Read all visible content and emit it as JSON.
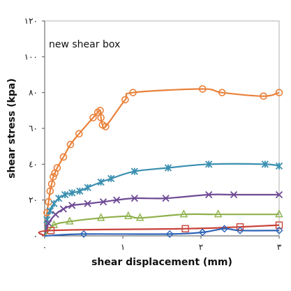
{
  "chart_data": {
    "type": "line",
    "title": "",
    "annotation": "new shear box",
    "xlabel": "shear displacement (mm)",
    "ylabel": "shear stress (kpa)",
    "xlim": [
      0,
      3
    ],
    "ylim": [
      0,
      120
    ],
    "x_ticks": [
      0,
      1,
      2,
      3
    ],
    "y_ticks": [
      0,
      20,
      40,
      60,
      80,
      100,
      120
    ],
    "x_tick_labels": [
      "٠",
      "١",
      "٢",
      "٣"
    ],
    "y_tick_labels": [
      "٠",
      "٢٠",
      "٤٠",
      "٦٠",
      "٨٠",
      "١٠٠",
      "١٢٠"
    ],
    "grid": false,
    "legend": "none",
    "series": [
      {
        "color": "#E9813A",
        "marker": "circle",
        "points": [
          [
            0,
            0
          ],
          [
            0.03,
            13
          ],
          [
            0.05,
            19
          ],
          [
            0.07,
            25
          ],
          [
            0.09,
            29
          ],
          [
            0.11,
            33
          ],
          [
            0.13,
            35
          ],
          [
            0.16,
            38
          ],
          [
            0.24,
            44
          ],
          [
            0.33,
            51
          ],
          [
            0.44,
            57
          ],
          [
            0.62,
            66
          ],
          [
            0.68,
            69
          ],
          [
            0.71,
            70
          ],
          [
            0.72,
            66
          ],
          [
            0.74,
            62
          ],
          [
            0.78,
            61
          ],
          [
            1.03,
            76
          ],
          [
            1.13,
            80
          ],
          [
            2.02,
            82
          ],
          [
            2.27,
            80
          ],
          [
            2.8,
            78
          ],
          [
            3,
            80
          ]
        ]
      },
      {
        "color": "#3A8FB0",
        "marker": "asterisk",
        "points": [
          [
            0,
            0
          ],
          [
            0.03,
            9
          ],
          [
            0.07,
            14
          ],
          [
            0.12,
            18
          ],
          [
            0.18,
            21
          ],
          [
            0.26,
            23
          ],
          [
            0.35,
            24
          ],
          [
            0.45,
            25
          ],
          [
            0.55,
            27
          ],
          [
            0.72,
            30
          ],
          [
            0.85,
            32
          ],
          [
            1.15,
            36
          ],
          [
            1.58,
            38
          ],
          [
            2.1,
            40
          ],
          [
            2.82,
            40
          ],
          [
            3,
            39
          ]
        ]
      },
      {
        "color": "#6E4A94",
        "marker": "x",
        "points": [
          [
            0,
            0
          ],
          [
            0.05,
            7
          ],
          [
            0.14,
            12
          ],
          [
            0.24,
            15
          ],
          [
            0.35,
            17
          ],
          [
            0.55,
            18
          ],
          [
            0.75,
            19
          ],
          [
            0.92,
            20
          ],
          [
            1.15,
            21
          ],
          [
            1.55,
            21
          ],
          [
            2.1,
            23
          ],
          [
            2.42,
            23
          ],
          [
            3,
            23
          ]
        ]
      },
      {
        "color": "#8DB04A",
        "marker": "triangle",
        "points": [
          [
            0,
            0
          ],
          [
            0.12,
            6
          ],
          [
            0.32,
            8
          ],
          [
            0.72,
            10
          ],
          [
            1.07,
            11
          ],
          [
            1.22,
            10
          ],
          [
            1.78,
            12
          ],
          [
            2.22,
            12
          ],
          [
            3,
            12
          ]
        ]
      },
      {
        "color": "#C8423A",
        "marker": "square",
        "points": [
          [
            0,
            0
          ],
          [
            0.08,
            3
          ],
          [
            1.8,
            4
          ],
          [
            2.5,
            5
          ],
          [
            3,
            6
          ]
        ]
      },
      {
        "color": "#2D64B8",
        "marker": "diamond",
        "points": [
          [
            0,
            0
          ],
          [
            0.5,
            1
          ],
          [
            1.6,
            1
          ],
          [
            2.02,
            2
          ],
          [
            2.3,
            4
          ],
          [
            2.5,
            3
          ],
          [
            3,
            3
          ]
        ]
      }
    ]
  }
}
